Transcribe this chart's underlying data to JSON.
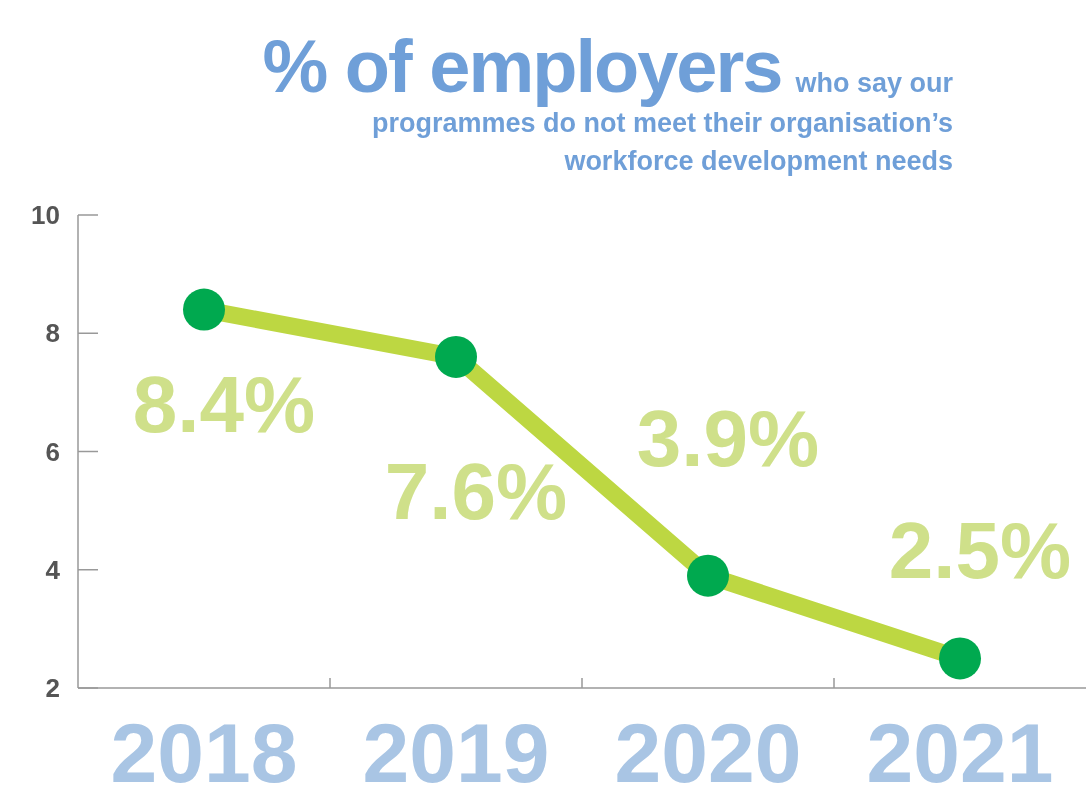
{
  "chart_data": {
    "type": "line",
    "title": "% of employers",
    "subtitle": "who say our programmes do not meet their organisation’s workforce development needs",
    "categories": [
      "2018",
      "2019",
      "2020",
      "2021"
    ],
    "values": [
      8.4,
      7.6,
      3.9,
      2.5
    ],
    "value_labels": [
      "8.4%",
      "7.6%",
      "3.9%",
      "2.5%"
    ],
    "color": "#bdd742",
    "colors": [
      "#00a94f",
      "#00a94f",
      "#00a94f",
      "#00a94f"
    ],
    "marker": "circle",
    "ylim": [
      2,
      10
    ],
    "yticks": [
      2,
      4,
      6,
      8,
      10
    ],
    "grid": false
  }
}
